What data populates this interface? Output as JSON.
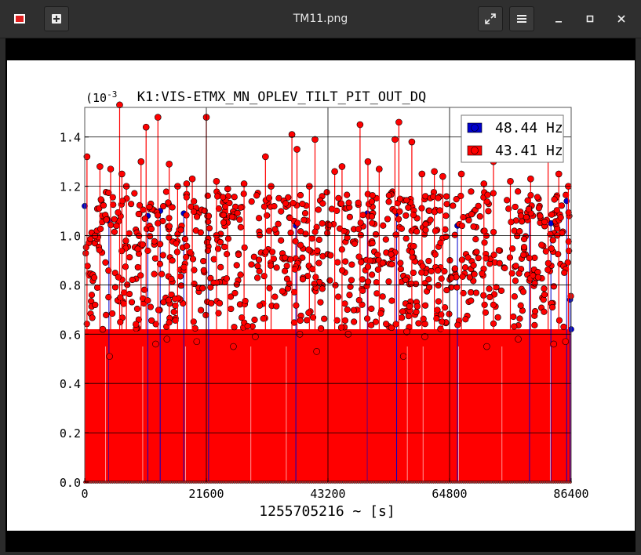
{
  "window": {
    "title": "TM11.png",
    "app_icon": "image-viewer-icon",
    "new_tab_icon": "plus-square-icon",
    "fullscreen_icon": "expand-icon",
    "menu_icon": "hamburger-icon",
    "minimize_icon": "minimize-icon",
    "maximize_icon": "maximize-icon",
    "close_icon": "close-icon"
  },
  "chart_data": {
    "type": "scatter",
    "title": "K1:VIS-ETMX_MN_OPLEV_TILT_PIT_OUT_DQ",
    "xlabel": "1255705216 ~ [s]",
    "ylabel": "",
    "y_scale_label": "(10",
    "y_scale_exp": "-3",
    "xlim": [
      0,
      86400
    ],
    "ylim": [
      0,
      1.52
    ],
    "x_ticks": [
      "0",
      "21600",
      "43200",
      "64800",
      "86400"
    ],
    "x_tick_values": [
      0,
      21600,
      43200,
      64800,
      86400
    ],
    "y_ticks": [
      "0.0",
      "0.2",
      "0.4",
      "0.6",
      "0.8",
      "1.0",
      "1.2",
      "1.4"
    ],
    "y_tick_values": [
      0.0,
      0.2,
      0.4,
      0.6,
      0.8,
      1.0,
      1.2,
      1.4
    ],
    "grid": true,
    "legend_position": "top-right",
    "style": "stem",
    "series": [
      {
        "name": "48.44 Hz",
        "color": "#0000cc",
        "x": [
          0,
          4300,
          11200,
          13400,
          17600,
          22000,
          37500,
          50200,
          55400,
          66200,
          79000,
          82800,
          85600,
          86200,
          86400
        ],
        "values": [
          1.12,
          1.06,
          1.08,
          1.1,
          1.09,
          1.08,
          1.04,
          1.09,
          1.09,
          1.04,
          1.09,
          1.05,
          1.14,
          0.74,
          0.62
        ]
      },
      {
        "name": "43.41 Hz",
        "color": "#ff0000",
        "x": [
          400,
          2700,
          4600,
          6200,
          6600,
          7400,
          10000,
          10900,
          13000,
          15000,
          16500,
          18100,
          19100,
          21600,
          23400,
          25400,
          28300,
          32100,
          33100,
          36800,
          37700,
          39900,
          40900,
          44400,
          45700,
          48900,
          50300,
          52300,
          55100,
          55800,
          58100,
          59900,
          62100,
          63600,
          66900,
          70900,
          72600,
          75600,
          79200,
          82300,
          84200,
          85900,
          4400,
          12600,
          26400,
          41200,
          56600,
          71400,
          83300,
          3200,
          14600,
          30300,
          46800,
          57200,
          77000,
          9100,
          19900,
          38200,
          60400,
          85400
        ],
        "values": [
          1.32,
          1.28,
          1.27,
          1.53,
          1.25,
          1.2,
          1.3,
          1.44,
          1.48,
          1.29,
          1.2,
          1.21,
          1.23,
          1.48,
          1.22,
          1.19,
          1.21,
          1.32,
          1.2,
          1.41,
          1.35,
          1.2,
          1.39,
          1.26,
          1.28,
          1.45,
          1.3,
          1.27,
          1.39,
          1.46,
          1.38,
          1.25,
          1.26,
          1.24,
          1.25,
          1.21,
          1.3,
          1.22,
          1.23,
          1.32,
          1.25,
          1.2,
          0.51,
          0.56,
          0.55,
          0.53,
          0.51,
          0.55,
          0.56,
          0.62,
          0.58,
          0.59,
          0.6,
          0.61,
          0.58,
          0.64,
          0.57,
          0.6,
          0.59,
          0.57
        ],
        "bulk_range": [
          0.62,
          1.18
        ]
      }
    ]
  }
}
